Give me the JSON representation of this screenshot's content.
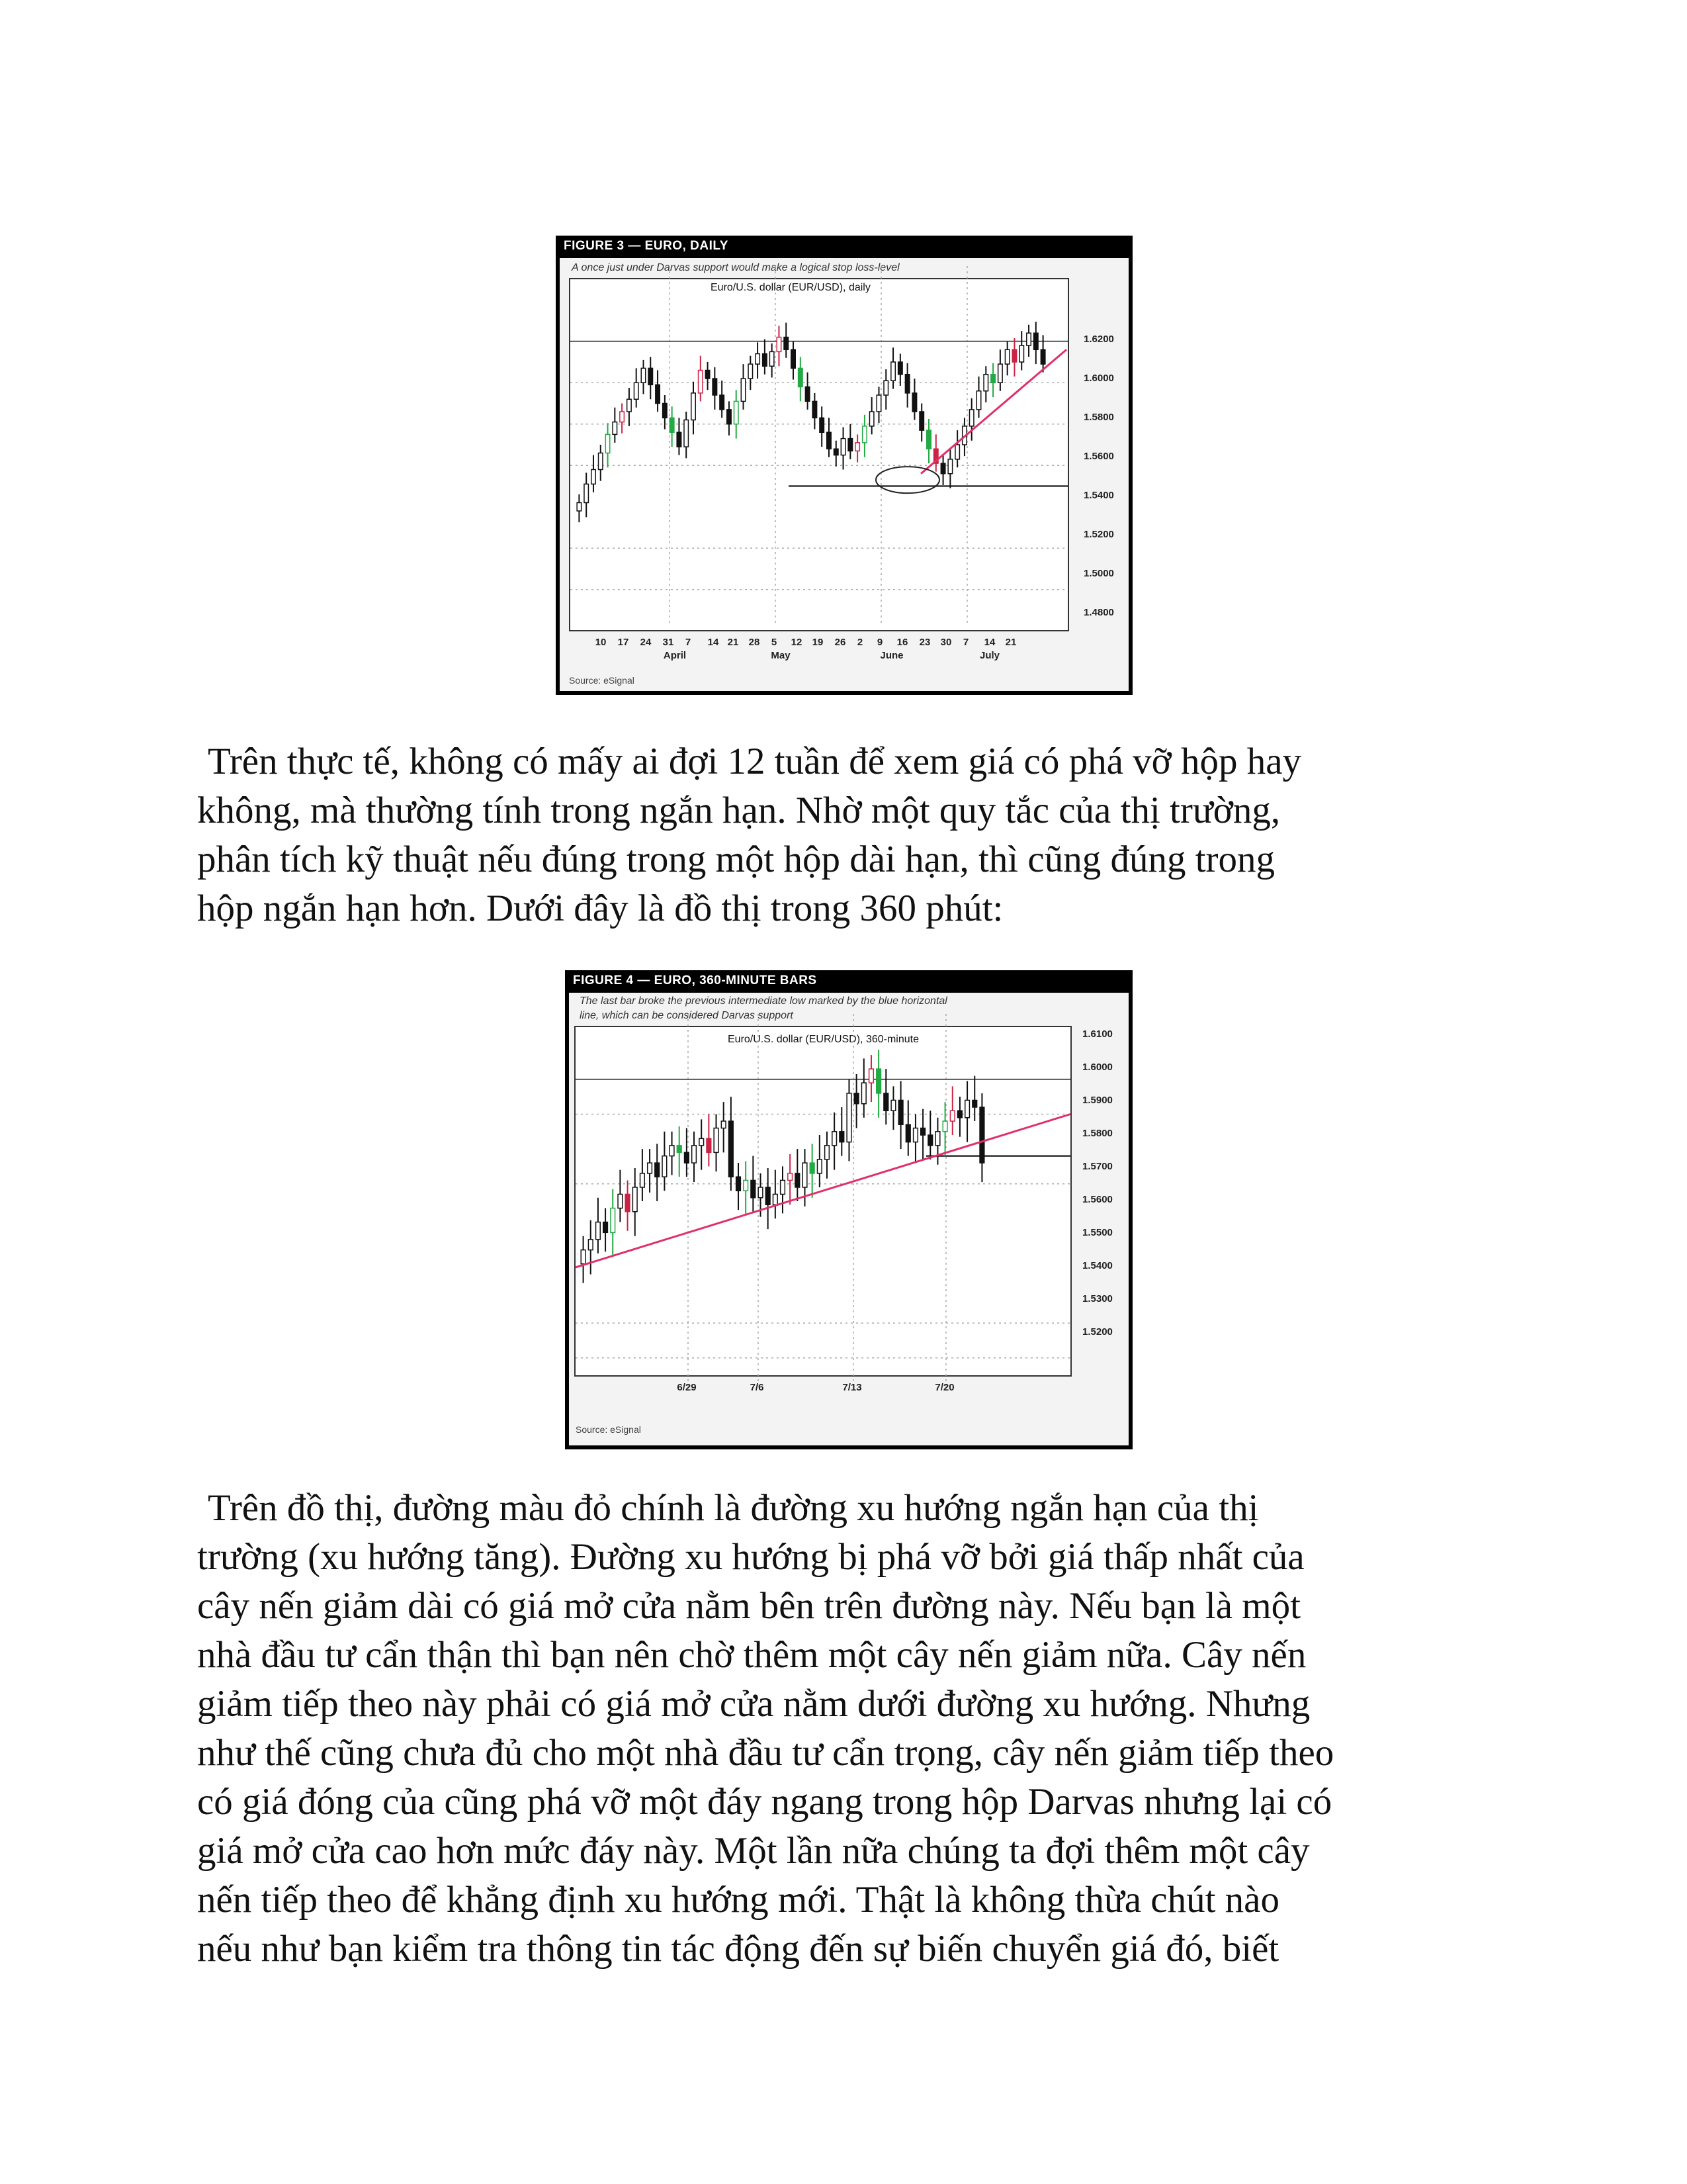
{
  "figure1": {
    "title": "FIGURE 3 — EURO, DAILY",
    "caption": "A once just under Darvas support would make a logical stop loss-level",
    "plot_title": "Euro/U.S. dollar (EUR/USD), daily",
    "source": "Source: eSignal",
    "y_ticks": [
      "1.6200",
      "1.6000",
      "1.5800",
      "1.5600",
      "1.5400",
      "1.5200",
      "1.5000",
      "1.4800"
    ],
    "x_ticks": [
      "10",
      "17",
      "24",
      "31",
      "7",
      "14",
      "21",
      "28",
      "5",
      "12",
      "19",
      "26",
      "2",
      "9",
      "16",
      "23",
      "30",
      "7",
      "14",
      "21"
    ],
    "months": [
      "April",
      "May",
      "June",
      "July"
    ]
  },
  "figure2": {
    "title": "FIGURE 4 — EURO, 360-MINUTE BARS",
    "caption_line1": "The last bar broke the previous intermediate low marked by the blue horizontal",
    "caption_line2": "line, which can be considered Darvas support",
    "plot_title": "Euro/U.S. dollar (EUR/USD), 360-minute",
    "source": "Source: eSignal",
    "y_ticks": [
      "1.6100",
      "1.6000",
      "1.5900",
      "1.5800",
      "1.5700",
      "1.5600",
      "1.5500",
      "1.5400",
      "1.5300",
      "1.5200"
    ],
    "x_ticks": [
      "6/29",
      "7/6",
      "7/13",
      "7/20"
    ]
  },
  "chart_data": [
    {
      "type": "candlestick",
      "title": "Euro/U.S. dollar (EUR/USD), daily",
      "ylim": [
        1.47,
        1.63
      ],
      "months": [
        "April",
        "May",
        "June",
        "July"
      ],
      "darvas_top": 1.6,
      "darvas_bottom": 1.53,
      "trendline_color": "#e0306a",
      "close": [
        1.522,
        1.531,
        1.538,
        1.546,
        1.555,
        1.561,
        1.566,
        1.572,
        1.58,
        1.587,
        1.579,
        1.57,
        1.563,
        1.556,
        1.549,
        1.562,
        1.575,
        1.586,
        1.582,
        1.574,
        1.567,
        1.56,
        1.571,
        1.582,
        1.589,
        1.594,
        1.588,
        1.595,
        1.602,
        1.596,
        1.587,
        1.578,
        1.571,
        1.563,
        1.556,
        1.548,
        1.545,
        1.553,
        1.547,
        1.551,
        1.559,
        1.566,
        1.574,
        1.581,
        1.59,
        1.584,
        1.575,
        1.566,
        1.557,
        1.548,
        1.541,
        1.536,
        1.543,
        1.55,
        1.559,
        1.567,
        1.576,
        1.584,
        1.58,
        1.589,
        1.596,
        1.59,
        1.598,
        1.604,
        1.596,
        1.589
      ]
    },
    {
      "type": "candlestick",
      "title": "Euro/U.S. dollar (EUR/USD), 360-minute",
      "ylim": [
        1.515,
        1.615
      ],
      "darvas_top": 1.6,
      "darvas_bottom": 1.578,
      "trendline_color": "#e0306a",
      "close": [
        1.551,
        1.554,
        1.559,
        1.556,
        1.563,
        1.567,
        1.562,
        1.569,
        1.573,
        1.576,
        1.572,
        1.578,
        1.581,
        1.579,
        1.576,
        1.581,
        1.583,
        1.579,
        1.586,
        1.588,
        1.572,
        1.568,
        1.571,
        1.566,
        1.569,
        1.564,
        1.567,
        1.571,
        1.573,
        1.569,
        1.576,
        1.573,
        1.577,
        1.581,
        1.585,
        1.582,
        1.596,
        1.593,
        1.599,
        1.603,
        1.596,
        1.591,
        1.594,
        1.587,
        1.582,
        1.586,
        1.584,
        1.581,
        1.585,
        1.588,
        1.591,
        1.589,
        1.594,
        1.592,
        1.576
      ]
    }
  ],
  "paragraph1": {
    "lines": [
      "Trên thực tế, không có mấy ai đợi 12 tuần để xem giá có phá vỡ hộp hay",
      "không, mà thường tính trong ngắn hạn. Nhờ một quy tắc của thị trường,",
      "phân tích kỹ thuật nếu đúng trong một hộp dài hạn, thì cũng đúng trong",
      "hộp ngắn hạn hơn. Dưới đây là đồ thị trong 360 phút:"
    ]
  },
  "paragraph2": {
    "lines": [
      "Trên đồ thị, đường màu đỏ chính là đường xu hướng ngắn hạn của thị",
      "trường (xu hướng tăng). Đường xu hướng bị phá vỡ bởi giá thấp nhất của",
      "cây nến giảm dài có giá mở cửa nằm bên trên đường này. Nếu bạn là một",
      "nhà đầu tư cẩn thận thì bạn nên chờ thêm một cây nến giảm nữa. Cây nến",
      "giảm tiếp theo này phải có giá mở cửa nằm dưới đường xu hướng. Nhưng",
      "như thế cũng chưa đủ cho một nhà đầu tư cẩn trọng, cây nến giảm tiếp theo",
      "có giá đóng của cũng phá vỡ một đáy ngang trong hộp Darvas nhưng lại có",
      "giá mở cửa cao hơn mức đáy này. Một lần nữa chúng ta đợi thêm một cây",
      "nến tiếp theo để khẳng định xu hướng mới. Thật là không thừa chút nào",
      "nếu như bạn kiểm tra thông tin tác động đến sự biến chuyển giá đó, biết"
    ]
  }
}
